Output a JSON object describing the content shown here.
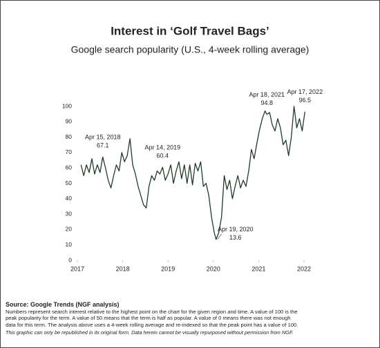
{
  "chart_data": {
    "type": "line",
    "title": "Interest in ‘Golf Travel Bags’",
    "subtitle": "Google search popularity (U.S., 4-week rolling average)",
    "x": [
      2017.08,
      2017.14,
      2017.2,
      2017.26,
      2017.32,
      2017.38,
      2017.44,
      2017.5,
      2017.56,
      2017.62,
      2017.68,
      2017.74,
      2017.8,
      2017.86,
      2017.92,
      2017.98,
      2018.04,
      2018.1,
      2018.16,
      2018.22,
      2018.28,
      2018.34,
      2018.4,
      2018.46,
      2018.52,
      2018.58,
      2018.64,
      2018.7,
      2018.76,
      2018.82,
      2018.88,
      2018.94,
      2019.0,
      2019.06,
      2019.12,
      2019.18,
      2019.24,
      2019.3,
      2019.36,
      2019.42,
      2019.48,
      2019.54,
      2019.6,
      2019.66,
      2019.72,
      2019.78,
      2019.84,
      2019.9,
      2019.96,
      2020.02,
      2020.06,
      2020.12,
      2020.18,
      2020.24,
      2020.3,
      2020.36,
      2020.42,
      2020.48,
      2020.54,
      2020.6,
      2020.66,
      2020.72,
      2020.78,
      2020.84,
      2020.9,
      2020.96,
      2021.02,
      2021.08,
      2021.14,
      2021.18,
      2021.24,
      2021.3,
      2021.36,
      2021.42,
      2021.48,
      2021.54,
      2021.6,
      2021.66,
      2021.72,
      2021.78,
      2021.84,
      2021.9,
      2021.96,
      2022.02
    ],
    "series": [
      {
        "name": "Golf Travel Bags",
        "color": "#1e3a26",
        "values": [
          62,
          55,
          62,
          57,
          66,
          56,
          62,
          57,
          67.1,
          60,
          52,
          47,
          55,
          62,
          58,
          70,
          64,
          68,
          79,
          62,
          56,
          48,
          42,
          36,
          34,
          48,
          55,
          52,
          58,
          56,
          60.4,
          52,
          56,
          62,
          50,
          58,
          64,
          53,
          62,
          50,
          62,
          49,
          63,
          58,
          64,
          48,
          50,
          42,
          28,
          18,
          13.6,
          18,
          28,
          55,
          46,
          52,
          40,
          48,
          55,
          47,
          52,
          48,
          58,
          72,
          66,
          76,
          85,
          92,
          97,
          94.8,
          96,
          88,
          84,
          92,
          86,
          75,
          78,
          68,
          80,
          100,
          86,
          92,
          84,
          96.5
        ]
      }
    ],
    "xlim": [
      2017,
      2022.25
    ],
    "xticks": [
      2017,
      2018,
      2019,
      2020,
      2021,
      2022
    ],
    "ylim": [
      0,
      100
    ],
    "yticks": [
      0,
      10,
      20,
      30,
      40,
      50,
      60,
      70,
      80,
      90,
      100
    ],
    "grid": false,
    "annotations": [
      {
        "label": "Apr 15, 2018",
        "x": 2017.56,
        "value": 67.1
      },
      {
        "label": "Apr 14, 2019",
        "x": 2018.88,
        "value": 60.4
      },
      {
        "label": "Apr 19, 2020",
        "x": 2020.06,
        "value": 13.6
      },
      {
        "label": "Apr 18, 2021",
        "x": 2021.18,
        "value": 94.8
      },
      {
        "label": "Apr 17, 2022",
        "x": 2022.02,
        "value": 96.5
      }
    ],
    "source": "Source: Google Trends (NGF analysis)",
    "notes": [
      "Numbers represent search interest relative to the highest point on the chart for the given region and time. A value of 100 is the",
      "peak popularity for the term. A value of 50 means that the term is half as popular. A value of 0 means there was not enough",
      "data for this term. The analysis above uses a 4-week rolling average and re-indexed so that the peak point has a value of 100."
    ],
    "rights": "This graphic can only be republished in its original form. Data herein cannot be visually repurposed without permission from NGF."
  }
}
